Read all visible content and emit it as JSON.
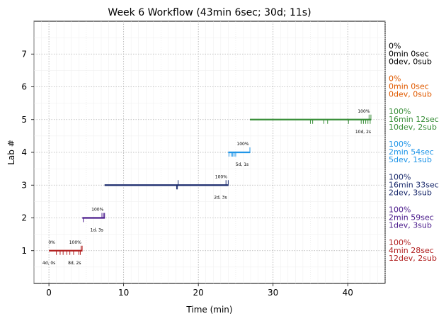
{
  "chart_data": {
    "type": "timeline",
    "title": "Week 6 Workflow (43min 6sec; 30d; 11s)",
    "xlabel": "Time (min)",
    "ylabel": "Lab #",
    "xlim": [
      -2,
      45
    ],
    "ylim": [
      8,
      0
    ],
    "x_ticks": [
      0,
      10,
      20,
      30,
      40
    ],
    "y_ticks": [
      1,
      2,
      3,
      4,
      5,
      6,
      7
    ],
    "grid": true,
    "labs": [
      {
        "lab": 1,
        "color": "#b22222",
        "start": 0.0,
        "end": 4.47,
        "dev_ticks": [
          1.0,
          1.5,
          1.9,
          2.4,
          2.8,
          3.3,
          4.0,
          4.2
        ],
        "sub_ticks": [
          4.3,
          4.45
        ],
        "start_pct": "0%",
        "end_pct": "100%",
        "start_note": "4d, 0s",
        "end_note": "8d, 2s",
        "summary": [
          "100%",
          "4min 28sec",
          "12dev, 2sub"
        ]
      },
      {
        "lab": 2,
        "color": "#4b1c8c",
        "start": 4.47,
        "end": 7.45,
        "dev_ticks": [
          4.6
        ],
        "sub_ticks": [
          7.1,
          7.35,
          7.45
        ],
        "end_pct": "100%",
        "end_note": "1d, 3s",
        "summary": [
          "100%",
          "2min 59sec",
          "1dev, 3sub"
        ]
      },
      {
        "lab": 3,
        "color": "#1a2a6c",
        "start": 7.45,
        "end": 24.0,
        "dev_ticks": [
          17.1,
          17.2
        ],
        "sub_ticks": [
          17.3,
          23.7,
          24.0
        ],
        "end_pct": "100%",
        "end_note": "2d, 3s",
        "summary": [
          "100%",
          "16min 33sec",
          "2dev, 3sub"
        ]
      },
      {
        "lab": 4,
        "color": "#2196e8",
        "start": 24.0,
        "end": 26.9,
        "dev_ticks": [
          24.1,
          24.4,
          24.6,
          24.8,
          25.0
        ],
        "sub_ticks": [
          26.9
        ],
        "end_pct": "100%",
        "end_note": "5d, 1s",
        "summary": [
          "100%",
          "2min 54sec",
          "5dev, 1sub"
        ]
      },
      {
        "lab": 5,
        "color": "#3a8f3a",
        "start": 26.9,
        "end": 43.1,
        "dev_ticks": [
          35.0,
          35.3,
          36.8,
          37.3,
          40.1,
          41.8,
          42.1,
          42.4,
          42.7,
          43.0
        ],
        "sub_ticks": [
          42.85,
          43.1
        ],
        "end_pct": "100%",
        "end_note": "10d, 2s",
        "summary": [
          "100%",
          "16min 12sec",
          "10dev, 2sub"
        ]
      },
      {
        "lab": 6,
        "color": "#e05a00",
        "summary": [
          "0%",
          "0min 0sec",
          "0dev, 0sub"
        ]
      },
      {
        "lab": 7,
        "color": "#000000",
        "summary": [
          "0%",
          "0min 0sec",
          "0dev, 0sub"
        ]
      }
    ]
  }
}
